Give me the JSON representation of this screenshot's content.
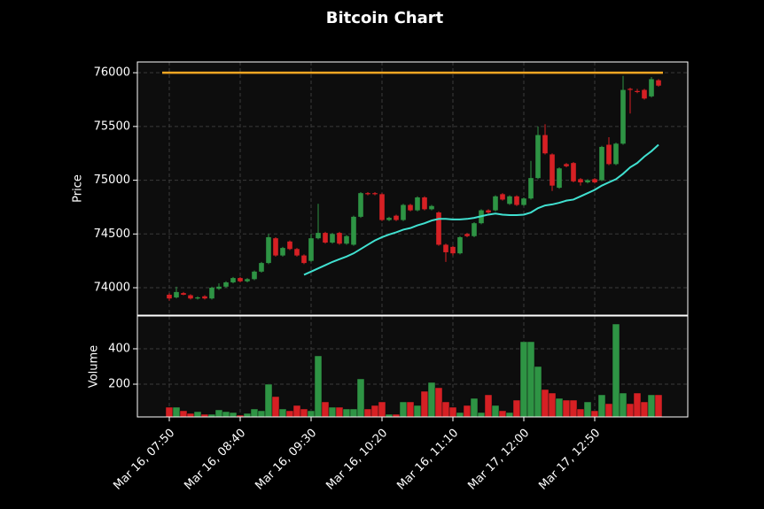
{
  "chart_data": [
    {
      "type": "candlestick",
      "title": "Bitcoin Chart",
      "ylabel": "Price",
      "open": [
        73935,
        73910,
        73950,
        73930,
        73900,
        73920,
        73900,
        73990,
        74010,
        74050,
        74090,
        74060,
        74080,
        74150,
        74230,
        74460,
        74300,
        74430,
        74360,
        74300,
        74250,
        74460,
        74510,
        74420,
        74510,
        74410,
        74400,
        74660,
        74880,
        74880,
        74870,
        74630,
        74670,
        74630,
        74770,
        74720,
        74840,
        74730,
        74700,
        74400,
        74380,
        74320,
        74500,
        74480,
        74600,
        74720,
        74720,
        74870,
        74780,
        74850,
        74770,
        74830,
        75020,
        75420,
        75240,
        74930,
        75150,
        75160,
        75010,
        74980,
        75010,
        75000,
        75330,
        75150,
        75340,
        75850,
        75830,
        75840,
        75780,
        75930
      ],
      "high": [
        73950,
        74010,
        73960,
        73940,
        73920,
        73930,
        74010,
        74040,
        74060,
        74100,
        74100,
        74090,
        74160,
        74240,
        74500,
        74470,
        74380,
        74440,
        74370,
        74310,
        74500,
        74780,
        74520,
        74510,
        74520,
        74490,
        74670,
        74890,
        74890,
        74890,
        74880,
        74660,
        74680,
        74780,
        74780,
        74850,
        74850,
        74770,
        74710,
        74410,
        74390,
        74480,
        74510,
        74610,
        74730,
        74730,
        74860,
        74880,
        74860,
        74860,
        74840,
        75180,
        75500,
        75520,
        75250,
        75120,
        75160,
        75170,
        75020,
        75010,
        75020,
        75320,
        75400,
        75350,
        75970,
        75860,
        75850,
        75850,
        75960,
        75940
      ],
      "low": [
        73880,
        73900,
        73930,
        73890,
        73890,
        73890,
        73890,
        73980,
        74000,
        74040,
        74050,
        74050,
        74070,
        74140,
        74220,
        74290,
        74290,
        74350,
        74290,
        74220,
        74240,
        74450,
        74410,
        74410,
        74400,
        74400,
        74390,
        74650,
        74860,
        74860,
        74620,
        74620,
        74620,
        74620,
        74710,
        74710,
        74720,
        74720,
        74390,
        74240,
        74300,
        74310,
        74470,
        74470,
        74590,
        74690,
        74710,
        74810,
        74770,
        74760,
        74760,
        74820,
        75010,
        75240,
        74900,
        74920,
        75120,
        74980,
        74950,
        74970,
        74970,
        74990,
        75140,
        75140,
        75330,
        75620,
        75810,
        75750,
        75770,
        75870
      ],
      "close": [
        73900,
        73960,
        73935,
        73900,
        73910,
        73900,
        74000,
        74010,
        74050,
        74090,
        74060,
        74080,
        74150,
        74230,
        74470,
        74300,
        74370,
        74360,
        74300,
        74230,
        74460,
        74510,
        74420,
        74500,
        74410,
        74480,
        74660,
        74880,
        74870,
        74870,
        74630,
        74650,
        74630,
        74770,
        74720,
        74840,
        74730,
        74760,
        74400,
        74330,
        74320,
        74470,
        74480,
        74600,
        74720,
        74700,
        74850,
        74820,
        74850,
        74770,
        74830,
        75020,
        75420,
        75250,
        74950,
        75110,
        75130,
        74990,
        74980,
        75000,
        74980,
        75310,
        75150,
        75340,
        75840,
        75840,
        75820,
        75760,
        75940,
        75880
      ],
      "up_color": "#2e9444",
      "down_color": "#d62024",
      "moving_average": {
        "color": "#40e0d0",
        "values": [
          null,
          null,
          null,
          null,
          null,
          null,
          null,
          null,
          null,
          null,
          null,
          null,
          null,
          null,
          null,
          null,
          null,
          null,
          null,
          74120,
          74150,
          74180,
          74210,
          74240,
          74265,
          74290,
          74320,
          74360,
          74400,
          74440,
          74470,
          74495,
          74515,
          74540,
          74555,
          74580,
          74600,
          74625,
          74640,
          74640,
          74635,
          74635,
          74640,
          74650,
          74665,
          74680,
          74690,
          74680,
          74675,
          74675,
          74680,
          74700,
          74740,
          74765,
          74775,
          74790,
          74810,
          74820,
          74850,
          74880,
          74910,
          74950,
          74980,
          75010,
          75060,
          75120,
          75160,
          75220,
          75270,
          75330
        ]
      },
      "hline": {
        "value": 76000,
        "color": "#f5a623"
      },
      "ylim": [
        73745,
        76100
      ],
      "yticks": [
        74000,
        74500,
        75000,
        75500,
        76000
      ],
      "grid": true
    },
    {
      "type": "bar",
      "ylabel": "Volume",
      "categories": [
        "Mar 16, 07:50",
        null,
        null,
        null,
        null,
        null,
        null,
        null,
        null,
        null,
        "Mar 16, 08:40",
        null,
        null,
        null,
        null,
        null,
        null,
        null,
        null,
        null,
        "Mar 16, 09:30",
        null,
        null,
        null,
        null,
        null,
        null,
        null,
        null,
        null,
        "Mar 16, 10:20",
        null,
        null,
        null,
        null,
        null,
        null,
        null,
        null,
        null,
        "Mar 16, 11:10",
        null,
        null,
        null,
        null,
        null,
        null,
        null,
        null,
        null,
        "Mar 17, 12:00",
        null,
        null,
        null,
        null,
        null,
        null,
        null,
        null,
        null,
        "Mar 17, 12:50",
        null,
        null,
        null,
        null,
        null,
        null,
        null,
        null,
        null
      ],
      "values": [
        70,
        70,
        50,
        35,
        45,
        30,
        30,
        55,
        45,
        40,
        25,
        35,
        60,
        50,
        200,
        130,
        60,
        50,
        80,
        60,
        50,
        360,
        100,
        70,
        70,
        60,
        60,
        230,
        60,
        80,
        100,
        30,
        30,
        100,
        100,
        80,
        160,
        210,
        180,
        100,
        70,
        40,
        80,
        120,
        40,
        140,
        80,
        50,
        40,
        110,
        440,
        440,
        300,
        170,
        150,
        120,
        110,
        110,
        60,
        100,
        50,
        140,
        90,
        540,
        150,
        90,
        150,
        100,
        140,
        140
      ],
      "ylim": [
        15,
        585
      ],
      "yticks": [
        200,
        400
      ],
      "grid": true
    }
  ]
}
